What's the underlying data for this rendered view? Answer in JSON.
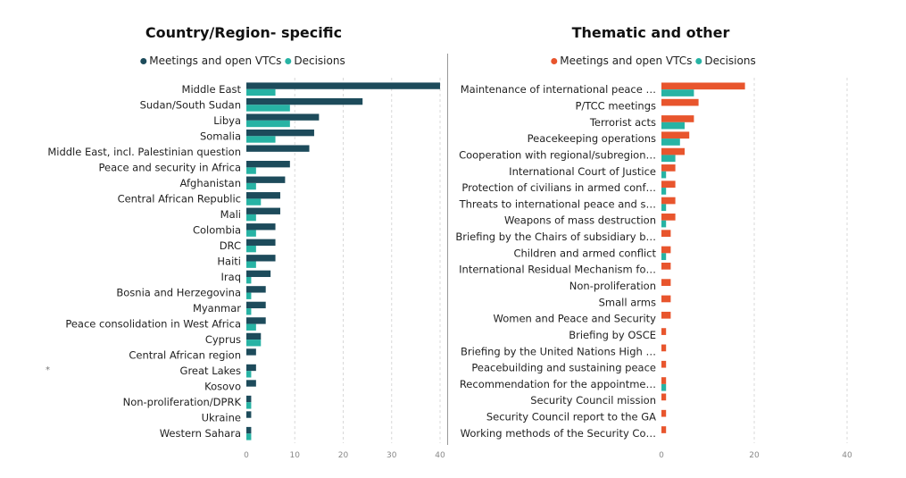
{
  "stray_mark": "*",
  "chart_data": [
    {
      "type": "bar",
      "orientation": "horizontal",
      "title": "Country/Region- specific",
      "legend_placement": "top",
      "grid": true,
      "xlim": [
        0,
        40
      ],
      "xticks": [
        0,
        10,
        20,
        30,
        40
      ],
      "categories": [
        "Middle East",
        "Sudan/South Sudan",
        "Libya",
        "Somalia",
        "Middle East, incl. Palestinian question",
        "Peace and security in Africa",
        "Afghanistan",
        "Central African Republic",
        "Mali",
        "Colombia",
        "DRC",
        "Haiti",
        "Iraq",
        "Bosnia and Herzegovina",
        "Myanmar",
        "Peace consolidation in West Africa",
        "Cyprus",
        "Central African region",
        "Great Lakes",
        "Kosovo",
        "Non-proliferation/DPRK",
        "Ukraine",
        "Western Sahara"
      ],
      "series": [
        {
          "name": "Meetings and open VTCs",
          "color": "#1d4b5b",
          "values": [
            40,
            24,
            15,
            14,
            13,
            9,
            8,
            7,
            7,
            6,
            6,
            6,
            5,
            4,
            4,
            4,
            3,
            2,
            2,
            2,
            1,
            1,
            1
          ]
        },
        {
          "name": "Decisions",
          "color": "#27b3a4",
          "values": [
            6,
            9,
            9,
            6,
            0,
            2,
            2,
            3,
            2,
            2,
            2,
            2,
            1,
            1,
            1,
            2,
            3,
            0,
            1,
            0,
            1,
            0,
            1
          ]
        }
      ]
    },
    {
      "type": "bar",
      "orientation": "horizontal",
      "title": "Thematic and other",
      "legend_placement": "top",
      "grid": true,
      "xlim": [
        0,
        40
      ],
      "xticks": [
        0,
        20,
        40
      ],
      "categories": [
        "Maintenance of international peace …",
        "P/TCC meetings",
        "Terrorist acts",
        "Peacekeeping operations",
        "Cooperation with regional/subregion…",
        "International Court of Justice",
        "Protection of civilians in armed conf…",
        "Threats to international peace and s…",
        "Weapons of mass destruction",
        "Briefing by the Chairs of subsidiary b…",
        "Children and armed conflict",
        "International Residual Mechanism fo…",
        "Non-proliferation",
        "Small arms",
        "Women and Peace and Security",
        "Briefing by OSCE",
        "Briefing by the United Nations High …",
        "Peacebuilding and sustaining peace",
        "Recommendation for the appointme…",
        "Security Council mission",
        "Security Council report to the GA",
        "Working methods of the Security Co…"
      ],
      "series": [
        {
          "name": "Meetings and open VTCs",
          "color": "#e8552d",
          "values": [
            18,
            8,
            7,
            6,
            5,
            3,
            3,
            3,
            3,
            2,
            2,
            2,
            2,
            2,
            2,
            1,
            1,
            1,
            1,
            1,
            1,
            1
          ]
        },
        {
          "name": "Decisions",
          "color": "#27b3a4",
          "values": [
            7,
            0,
            5,
            4,
            3,
            1,
            1,
            1,
            1,
            0,
            1,
            0,
            0,
            0,
            0,
            0,
            0,
            0,
            1,
            0,
            0,
            0
          ]
        }
      ]
    }
  ]
}
